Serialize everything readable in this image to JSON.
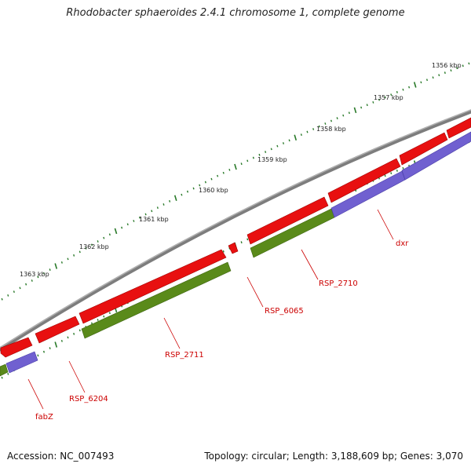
{
  "header": {
    "title": "Rhodobacter sphaeroides 2.4.1 chromosome 1, complete genome"
  },
  "footer": {
    "accession_label": "Accession: NC_007493",
    "topology_summary": "Topology: circular; Length: 3,188,609 bp; Genes: 3,070"
  },
  "scale": {
    "ticks": [
      "1356 kbp",
      "1357 kbp",
      "1358 kbp",
      "1359 kbp",
      "1360 kbp",
      "1361 kbp",
      "1362 kbp",
      "1363 kbp"
    ]
  },
  "genes": {
    "labels": [
      "dxr",
      "RSP_2710",
      "RSP_6065",
      "RSP_2711",
      "RSP_6204",
      "fabZ"
    ]
  },
  "colors": {
    "backbone": "#808080",
    "forward_strand": "#e81010",
    "reverse_green": "#5a8a1a",
    "reverse_blue": "#7060d0",
    "tick_marks": "#2a7a2a",
    "label_text": "#cc0000"
  }
}
